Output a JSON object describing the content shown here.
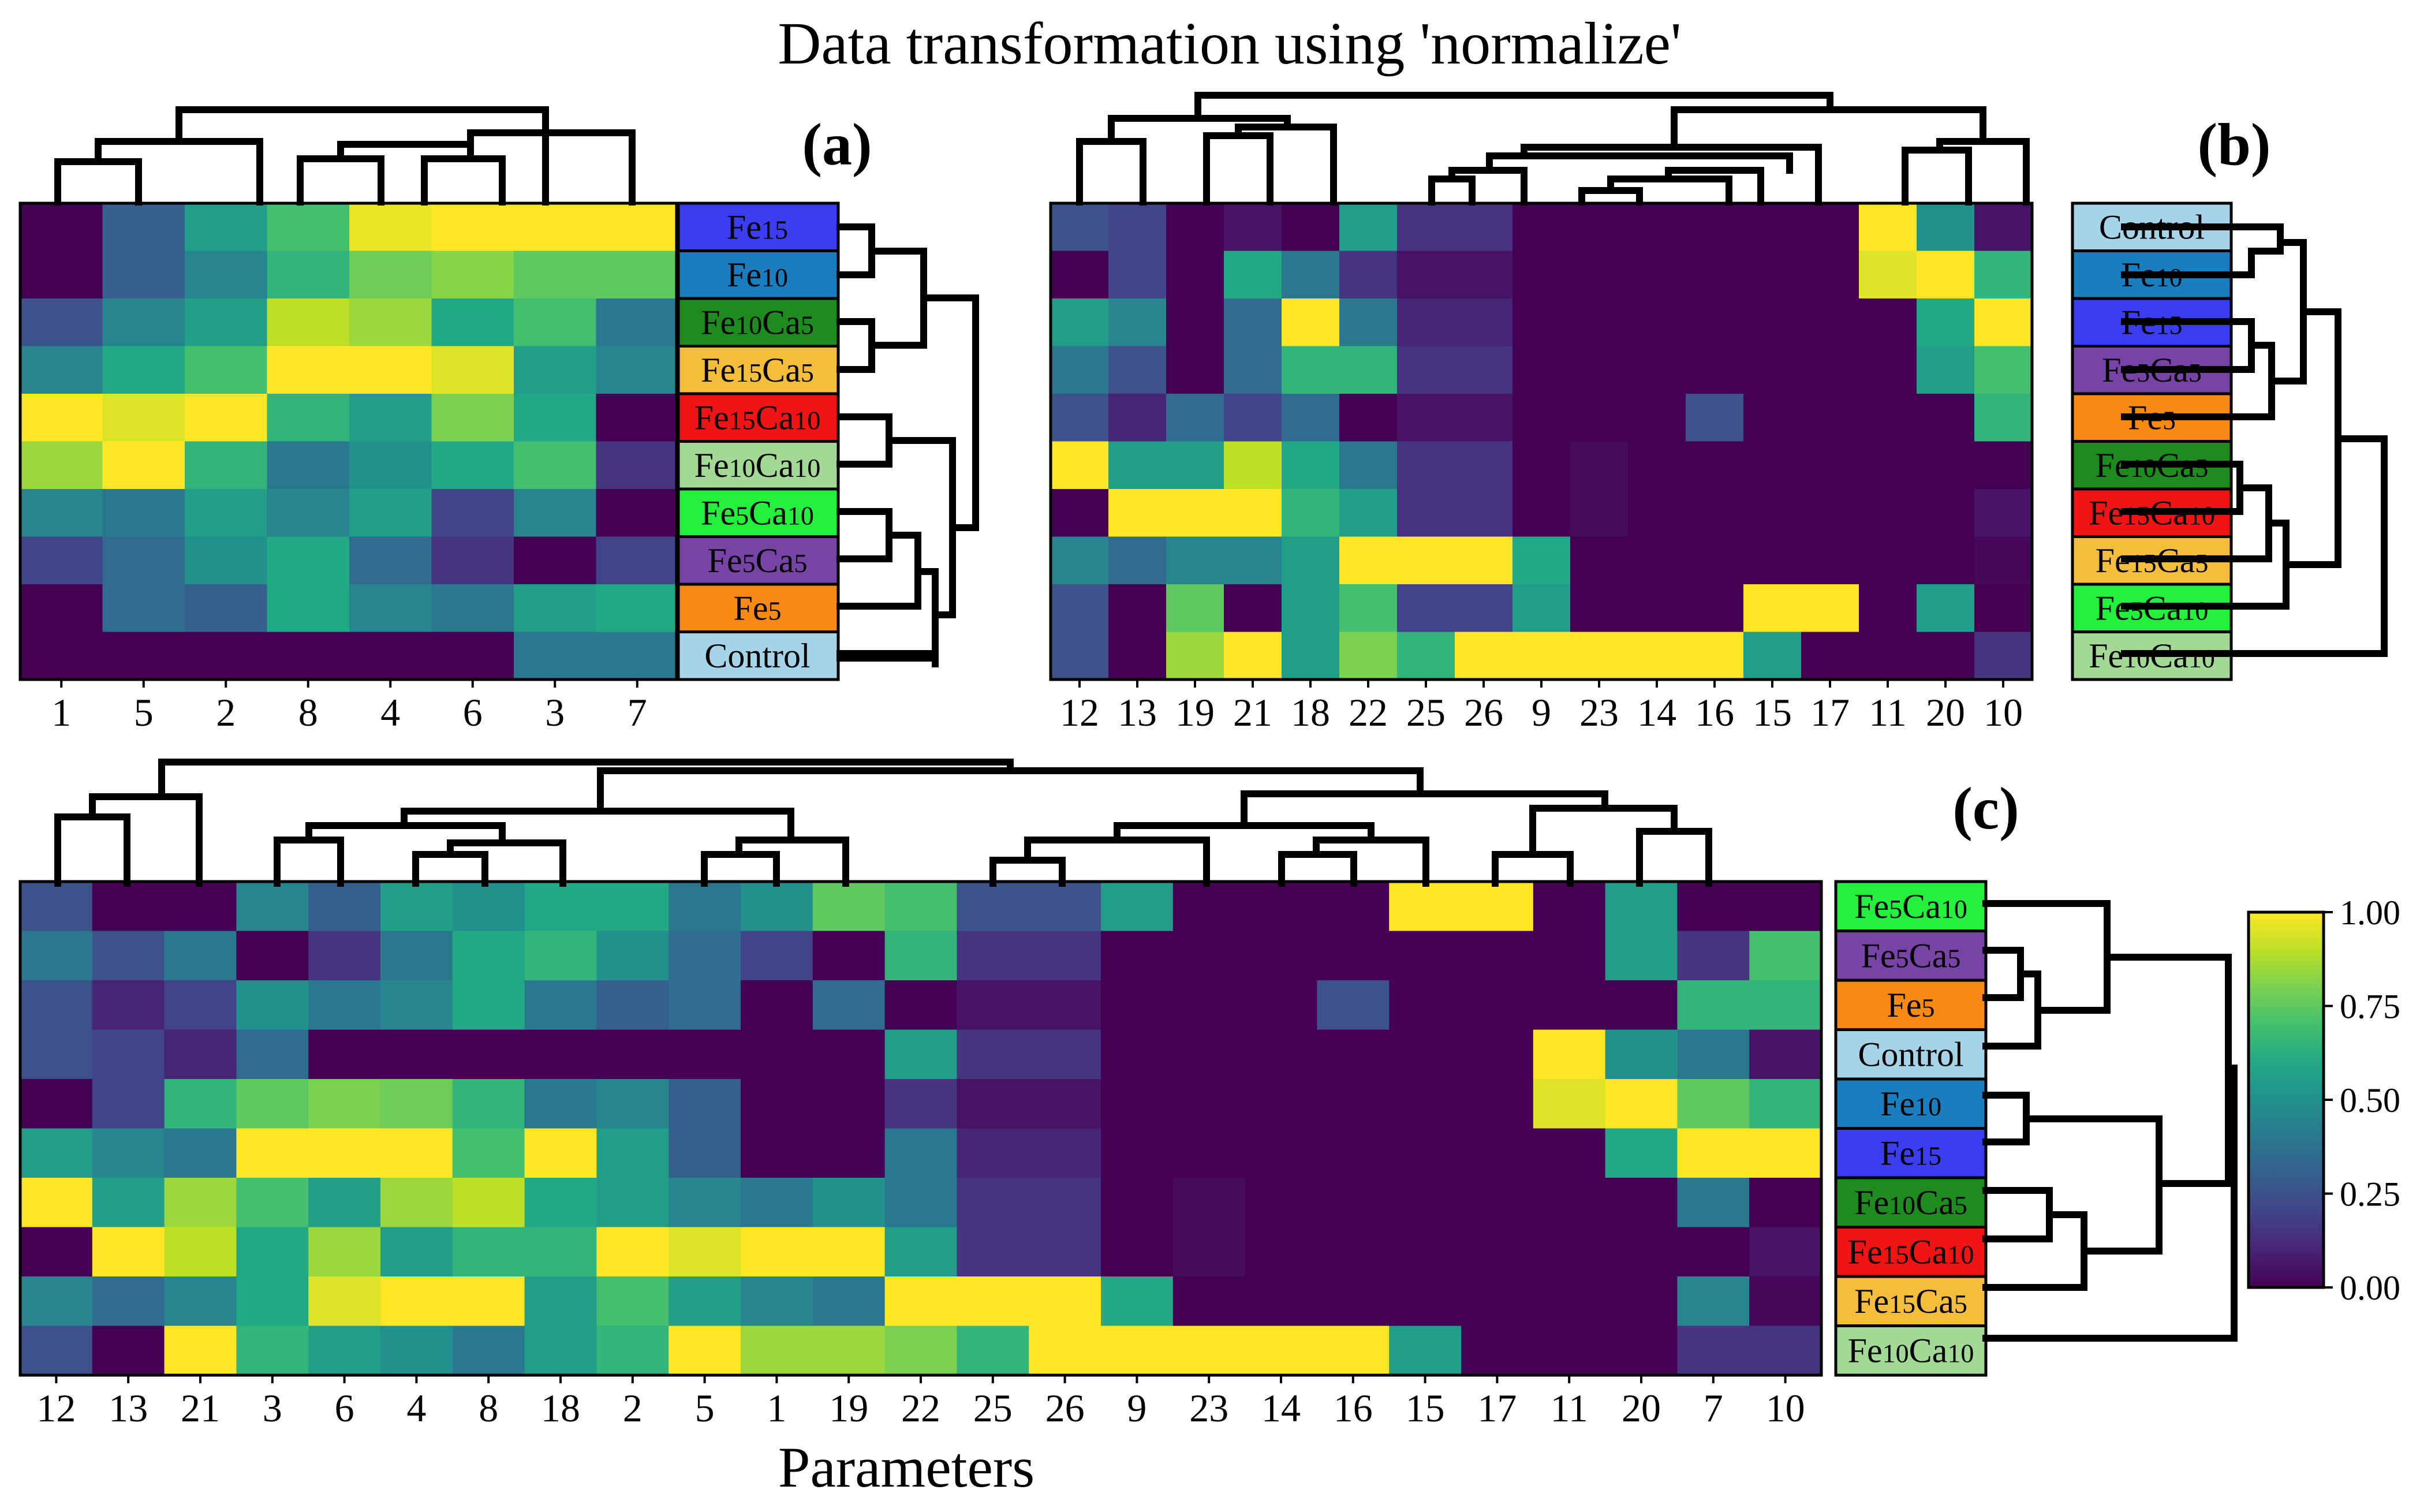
{
  "title": "Data transformation using  'normalize'",
  "xlabel": "Parameters",
  "colors": {
    "Fe15": "#3a3df0",
    "Fe10": "#1a7dbd",
    "Fe10Ca5": "#1d8b1d",
    "Fe15Ca5": "#f5bd3c",
    "Fe15Ca10": "#f01414",
    "Fe10Ca10": "#a2d994",
    "Fe5Ca10": "#22f03c",
    "Fe5Ca5": "#7744a6",
    "Fe5": "#f88a14",
    "Control": "#a5d4e8"
  },
  "chart_data": [
    {
      "type": "heatmap",
      "panel": "(a)",
      "columns": [
        "1",
        "5",
        "2",
        "8",
        "4",
        "6",
        "3",
        "7"
      ],
      "rows": [
        {
          "name": "Fe15",
          "values": [
            0.0,
            0.3,
            0.55,
            0.7,
            0.97,
            1.0,
            1.0,
            1.0
          ]
        },
        {
          "name": "Fe10",
          "values": [
            0.0,
            0.3,
            0.45,
            0.65,
            0.78,
            0.82,
            0.75,
            0.75
          ]
        },
        {
          "name": "Fe10Ca5",
          "values": [
            0.25,
            0.45,
            0.55,
            0.9,
            0.85,
            0.6,
            0.7,
            0.4
          ]
        },
        {
          "name": "Fe15Ca5",
          "values": [
            0.45,
            0.6,
            0.7,
            1.0,
            1.0,
            0.95,
            0.55,
            0.45
          ]
        },
        {
          "name": "Fe15Ca10",
          "values": [
            1.0,
            0.95,
            1.0,
            0.65,
            0.55,
            0.8,
            0.6,
            0.0
          ]
        },
        {
          "name": "Fe10Ca10",
          "values": [
            0.85,
            1.0,
            0.65,
            0.4,
            0.5,
            0.6,
            0.7,
            0.15
          ]
        },
        {
          "name": "Fe5Ca10",
          "values": [
            0.45,
            0.4,
            0.55,
            0.45,
            0.55,
            0.2,
            0.45,
            0.0
          ]
        },
        {
          "name": "Fe5Ca5",
          "values": [
            0.2,
            0.35,
            0.5,
            0.6,
            0.35,
            0.15,
            0.0,
            0.2
          ]
        },
        {
          "name": "Fe5",
          "values": [
            0.0,
            0.35,
            0.3,
            0.6,
            0.45,
            0.4,
            0.55,
            0.6
          ]
        },
        {
          "name": "Control",
          "values": [
            0.0,
            0.0,
            0.0,
            0.0,
            0.0,
            0.0,
            0.4,
            0.4
          ]
        }
      ]
    },
    {
      "type": "heatmap",
      "panel": "(b)",
      "columns": [
        "12",
        "13",
        "19",
        "21",
        "18",
        "22",
        "25",
        "26",
        "9",
        "23",
        "14",
        "16",
        "15",
        "17",
        "11",
        "20",
        "10"
      ],
      "rows": [
        {
          "name": "Control",
          "values": [
            0.25,
            0.2,
            0.0,
            0.05,
            0.0,
            0.55,
            0.15,
            0.15,
            0.0,
            0.0,
            0.0,
            0.0,
            0.0,
            0.0,
            1.0,
            0.5,
            0.05
          ]
        },
        {
          "name": "Fe10",
          "values": [
            0.0,
            0.2,
            0.0,
            0.6,
            0.4,
            0.15,
            0.05,
            0.05,
            0.0,
            0.0,
            0.0,
            0.0,
            0.0,
            0.0,
            0.95,
            1.0,
            0.65
          ]
        },
        {
          "name": "Fe15",
          "values": [
            0.55,
            0.45,
            0.0,
            0.35,
            1.0,
            0.4,
            0.1,
            0.1,
            0.0,
            0.0,
            0.0,
            0.0,
            0.0,
            0.0,
            0.0,
            0.6,
            1.0
          ]
        },
        {
          "name": "Fe5Ca5",
          "values": [
            0.4,
            0.25,
            0.0,
            0.35,
            0.65,
            0.65,
            0.15,
            0.15,
            0.0,
            0.0,
            0.0,
            0.0,
            0.0,
            0.0,
            0.0,
            0.55,
            0.7
          ]
        },
        {
          "name": "Fe5",
          "values": [
            0.25,
            0.1,
            0.35,
            0.2,
            0.35,
            0.0,
            0.05,
            0.05,
            0.0,
            0.0,
            0.0,
            0.25,
            0.0,
            0.0,
            0.0,
            0.0,
            0.65
          ]
        },
        {
          "name": "Fe10Ca5",
          "values": [
            1.0,
            0.55,
            0.55,
            0.9,
            0.6,
            0.4,
            0.15,
            0.15,
            0.0,
            0.03,
            0.0,
            0.0,
            0.0,
            0.0,
            0.0,
            0.0,
            0.0
          ]
        },
        {
          "name": "Fe15Ca10",
          "values": [
            0.0,
            1.0,
            1.0,
            1.0,
            0.65,
            0.55,
            0.15,
            0.15,
            0.0,
            0.03,
            0.0,
            0.0,
            0.0,
            0.0,
            0.0,
            0.0,
            0.05
          ]
        },
        {
          "name": "Fe15Ca5",
          "values": [
            0.45,
            0.35,
            0.45,
            0.45,
            0.55,
            1.0,
            1.0,
            1.0,
            0.6,
            0.0,
            0.0,
            0.0,
            0.0,
            0.0,
            0.0,
            0.0,
            0.02
          ]
        },
        {
          "name": "Fe5Ca10",
          "values": [
            0.25,
            0.0,
            0.75,
            0.0,
            0.55,
            0.7,
            0.2,
            0.2,
            0.55,
            0.0,
            0.0,
            0.0,
            1.0,
            1.0,
            0.0,
            0.55,
            0.0
          ]
        },
        {
          "name": "Fe10Ca10",
          "values": [
            0.25,
            0.0,
            0.85,
            1.0,
            0.55,
            0.8,
            0.65,
            1.0,
            1.0,
            1.0,
            1.0,
            1.0,
            0.55,
            0.0,
            0.0,
            0.0,
            0.15
          ]
        }
      ]
    },
    {
      "type": "heatmap",
      "panel": "(c)",
      "columns": [
        "12",
        "13",
        "21",
        "3",
        "6",
        "4",
        "8",
        "18",
        "2",
        "5",
        "1",
        "19",
        "22",
        "25",
        "26",
        "9",
        "23",
        "14",
        "16",
        "15",
        "17",
        "11",
        "20",
        "7",
        "10"
      ],
      "rows": [
        {
          "name": "Fe5Ca10",
          "values": [
            0.25,
            0.0,
            0.0,
            0.45,
            0.3,
            0.55,
            0.5,
            0.6,
            0.6,
            0.4,
            0.5,
            0.75,
            0.7,
            0.25,
            0.25,
            0.55,
            0.0,
            0.0,
            0.0,
            1.0,
            1.0,
            0.0,
            0.55,
            0.0,
            0.0
          ]
        },
        {
          "name": "Fe5Ca5",
          "values": [
            0.4,
            0.25,
            0.4,
            0.0,
            0.15,
            0.4,
            0.6,
            0.65,
            0.5,
            0.35,
            0.2,
            0.0,
            0.65,
            0.15,
            0.15,
            0.0,
            0.0,
            0.0,
            0.0,
            0.0,
            0.0,
            0.0,
            0.55,
            0.15,
            0.7
          ]
        },
        {
          "name": "Fe5",
          "values": [
            0.25,
            0.1,
            0.2,
            0.5,
            0.4,
            0.45,
            0.6,
            0.4,
            0.3,
            0.35,
            0.0,
            0.35,
            0.0,
            0.05,
            0.05,
            0.0,
            0.0,
            0.0,
            0.25,
            0.0,
            0.0,
            0.0,
            0.0,
            0.65,
            0.65
          ]
        },
        {
          "name": "Control",
          "values": [
            0.25,
            0.2,
            0.1,
            0.35,
            0.0,
            0.0,
            0.0,
            0.0,
            0.0,
            0.0,
            0.0,
            0.0,
            0.55,
            0.15,
            0.15,
            0.0,
            0.0,
            0.0,
            0.0,
            0.0,
            0.0,
            1.0,
            0.5,
            0.4,
            0.05
          ]
        },
        {
          "name": "Fe10",
          "values": [
            0.0,
            0.2,
            0.65,
            0.75,
            0.8,
            0.78,
            0.65,
            0.4,
            0.45,
            0.3,
            0.0,
            0.0,
            0.15,
            0.05,
            0.05,
            0.0,
            0.0,
            0.0,
            0.0,
            0.0,
            0.0,
            0.95,
            1.0,
            0.75,
            0.65
          ]
        },
        {
          "name": "Fe15",
          "values": [
            0.55,
            0.45,
            0.4,
            1.0,
            1.0,
            1.0,
            0.7,
            1.0,
            0.55,
            0.3,
            0.0,
            0.0,
            0.4,
            0.1,
            0.1,
            0.0,
            0.0,
            0.0,
            0.0,
            0.0,
            0.0,
            0.0,
            0.6,
            1.0,
            1.0
          ]
        },
        {
          "name": "Fe10Ca5",
          "values": [
            1.0,
            0.55,
            0.85,
            0.7,
            0.55,
            0.85,
            0.9,
            0.6,
            0.55,
            0.45,
            0.4,
            0.5,
            0.4,
            0.15,
            0.15,
            0.0,
            0.03,
            0.0,
            0.0,
            0.0,
            0.0,
            0.0,
            0.0,
            0.4,
            0.0
          ]
        },
        {
          "name": "Fe15Ca10",
          "values": [
            0.0,
            1.0,
            0.9,
            0.6,
            0.85,
            0.55,
            0.65,
            0.65,
            1.0,
            0.95,
            1.0,
            1.0,
            0.55,
            0.15,
            0.15,
            0.0,
            0.03,
            0.0,
            0.0,
            0.0,
            0.0,
            0.0,
            0.0,
            0.0,
            0.05
          ]
        },
        {
          "name": "Fe15Ca5",
          "values": [
            0.45,
            0.35,
            0.45,
            0.6,
            0.95,
            1.0,
            1.0,
            0.55,
            0.7,
            0.55,
            0.45,
            0.4,
            1.0,
            1.0,
            1.0,
            0.6,
            0.0,
            0.0,
            0.0,
            0.0,
            0.0,
            0.0,
            0.0,
            0.45,
            0.02
          ]
        },
        {
          "name": "Fe10Ca10",
          "values": [
            0.25,
            0.0,
            1.0,
            0.65,
            0.55,
            0.5,
            0.4,
            0.55,
            0.65,
            1.0,
            0.85,
            0.85,
            0.8,
            0.65,
            1.0,
            1.0,
            1.0,
            1.0,
            1.0,
            0.55,
            0.0,
            0.0,
            0.0,
            0.15,
            0.15
          ]
        }
      ]
    }
  ],
  "colorbar": {
    "min": 0,
    "max": 1,
    "ticks": [
      "0.00",
      "0.25",
      "0.50",
      "0.75",
      "1.00"
    ]
  }
}
